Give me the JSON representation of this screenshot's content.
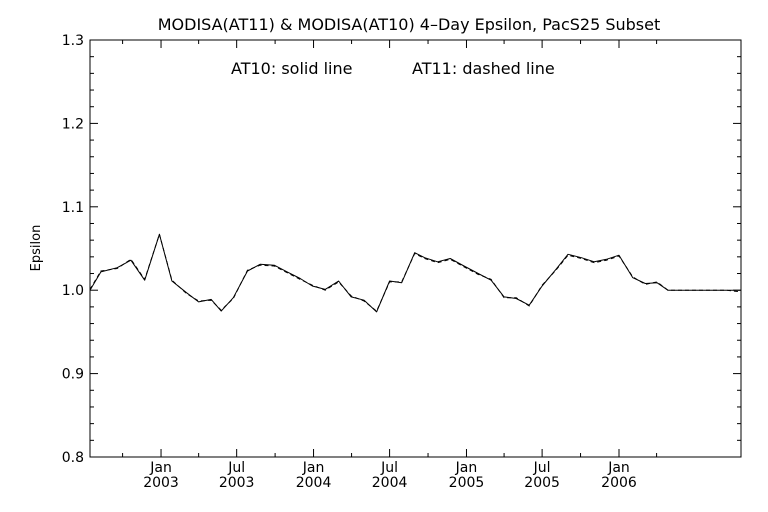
{
  "chart_data": {
    "type": "line",
    "title": "MODISA(AT11) & MODISA(AT10) 4–Day Epsilon, PacS25 Subset",
    "xlabel": "",
    "ylabel": "Epsilon",
    "annotations": [
      "AT10: solid line",
      "AT11: dashed line"
    ],
    "xlim": [
      "2002-07-15",
      "2006-10-20"
    ],
    "ylim": [
      0.8,
      1.3
    ],
    "yticks": [
      0.8,
      0.9,
      1.0,
      1.1,
      1.2,
      1.3
    ],
    "ytick_labels": [
      "0.8",
      "0.9",
      "1.0",
      "1.1",
      "1.2",
      "1.3"
    ],
    "xticks_major": [
      {
        "date": "2003-01-01",
        "month": "Jan",
        "year": "2003"
      },
      {
        "date": "2003-07-01",
        "month": "Jul",
        "year": "2003"
      },
      {
        "date": "2004-01-01",
        "month": "Jan",
        "year": "2004"
      },
      {
        "date": "2004-07-01",
        "month": "Jul",
        "year": "2004"
      },
      {
        "date": "2005-01-01",
        "month": "Jan",
        "year": "2005"
      },
      {
        "date": "2005-07-01",
        "month": "Jul",
        "year": "2005"
      },
      {
        "date": "2006-01-01",
        "month": "Jan",
        "year": "2006"
      }
    ],
    "xticks_minor": [
      "2002-10-01",
      "2003-04-01",
      "2003-10-01",
      "2004-04-01",
      "2004-10-01",
      "2005-04-01",
      "2005-10-01",
      "2006-04-01"
    ],
    "grid": false,
    "series": [
      {
        "style": "solid",
        "color": "#000000",
        "x": [
          "2002-07-15",
          "2002-08-10",
          "2002-09-18",
          "2002-10-21",
          "2002-11-23",
          "2002-12-28",
          "2003-01-27",
          "2003-03-03",
          "2003-04-01",
          "2003-05-01",
          "2003-05-25",
          "2003-06-23",
          "2003-07-27",
          "2003-08-26",
          "2003-09-29",
          "2003-10-30",
          "2003-11-30",
          "2003-12-29",
          "2004-01-29",
          "2004-03-01",
          "2004-03-31",
          "2004-05-01",
          "2004-05-31",
          "2004-07-01",
          "2004-07-30",
          "2004-08-30",
          "2004-09-23",
          "2004-10-24",
          "2004-11-23",
          "2004-12-26",
          "2005-01-29",
          "2005-03-01",
          "2005-04-01",
          "2005-04-30",
          "2005-05-31",
          "2005-07-01",
          "2005-08-03",
          "2005-09-01",
          "2005-10-03",
          "2005-11-03",
          "2005-12-02",
          "2006-01-01",
          "2006-02-03",
          "2006-03-05",
          "2006-04-02",
          "2006-04-28",
          "2006-05-19",
          "2006-06-08",
          "2006-06-28",
          "2006-07-25",
          "2006-08-17",
          "2006-09-14",
          "2006-10-20"
        ],
        "y": [
          1.0,
          1.022,
          1.027,
          1.036,
          1.012,
          1.067,
          1.011,
          0.997,
          0.986,
          0.989,
          0.975,
          0.991,
          1.023,
          1.031,
          1.03,
          1.022,
          1.014,
          1.005,
          1.001,
          1.011,
          0.992,
          0.988,
          0.974,
          1.011,
          1.009,
          1.045,
          1.039,
          1.034,
          1.038,
          1.029,
          1.02,
          1.012,
          0.992,
          0.99,
          0.982,
          1.005,
          1.025,
          1.043,
          1.039,
          1.034,
          1.037,
          1.042,
          1.015,
          1.008,
          1.009,
          1.0,
          1.0,
          1.0,
          1.0,
          1.0,
          1.0,
          1.0,
          1.0
        ]
      },
      {
        "style": "dashed",
        "color": "#000000",
        "x": [
          "2002-07-15",
          "2002-08-10",
          "2002-09-18",
          "2002-10-21",
          "2002-11-23",
          "2002-12-28",
          "2003-01-27",
          "2003-03-03",
          "2003-04-01",
          "2003-05-01",
          "2003-05-25",
          "2003-06-23",
          "2003-07-27",
          "2003-08-26",
          "2003-09-29",
          "2003-10-30",
          "2003-11-30",
          "2003-12-29",
          "2004-01-29",
          "2004-03-01",
          "2004-03-31",
          "2004-05-01",
          "2004-05-31",
          "2004-07-01",
          "2004-07-30",
          "2004-08-30",
          "2004-09-23",
          "2004-10-24",
          "2004-11-23",
          "2004-12-26",
          "2005-01-29",
          "2005-03-01",
          "2005-04-01",
          "2005-04-30",
          "2005-05-31",
          "2005-07-01",
          "2005-08-03",
          "2005-09-01",
          "2005-10-03",
          "2005-11-03",
          "2005-12-02",
          "2006-01-01",
          "2006-02-03",
          "2006-03-05",
          "2006-04-02",
          "2006-04-28",
          "2006-05-19",
          "2006-06-08",
          "2006-06-28",
          "2006-07-25",
          "2006-08-17",
          "2006-09-14",
          "2006-10-20"
        ],
        "y": [
          1.001,
          1.023,
          1.026,
          1.037,
          1.013,
          1.067,
          1.012,
          0.996,
          0.987,
          0.988,
          0.976,
          0.99,
          1.024,
          1.03,
          1.029,
          1.021,
          1.013,
          1.006,
          1.0,
          1.01,
          0.993,
          0.987,
          0.975,
          1.01,
          1.01,
          1.044,
          1.038,
          1.033,
          1.037,
          1.028,
          1.019,
          1.013,
          0.991,
          0.991,
          0.981,
          1.006,
          1.024,
          1.042,
          1.038,
          1.033,
          1.036,
          1.041,
          1.016,
          1.007,
          1.01,
          1.0,
          1.0,
          1.0,
          1.0,
          1.0,
          1.0,
          1.0,
          0.998
        ]
      }
    ]
  }
}
